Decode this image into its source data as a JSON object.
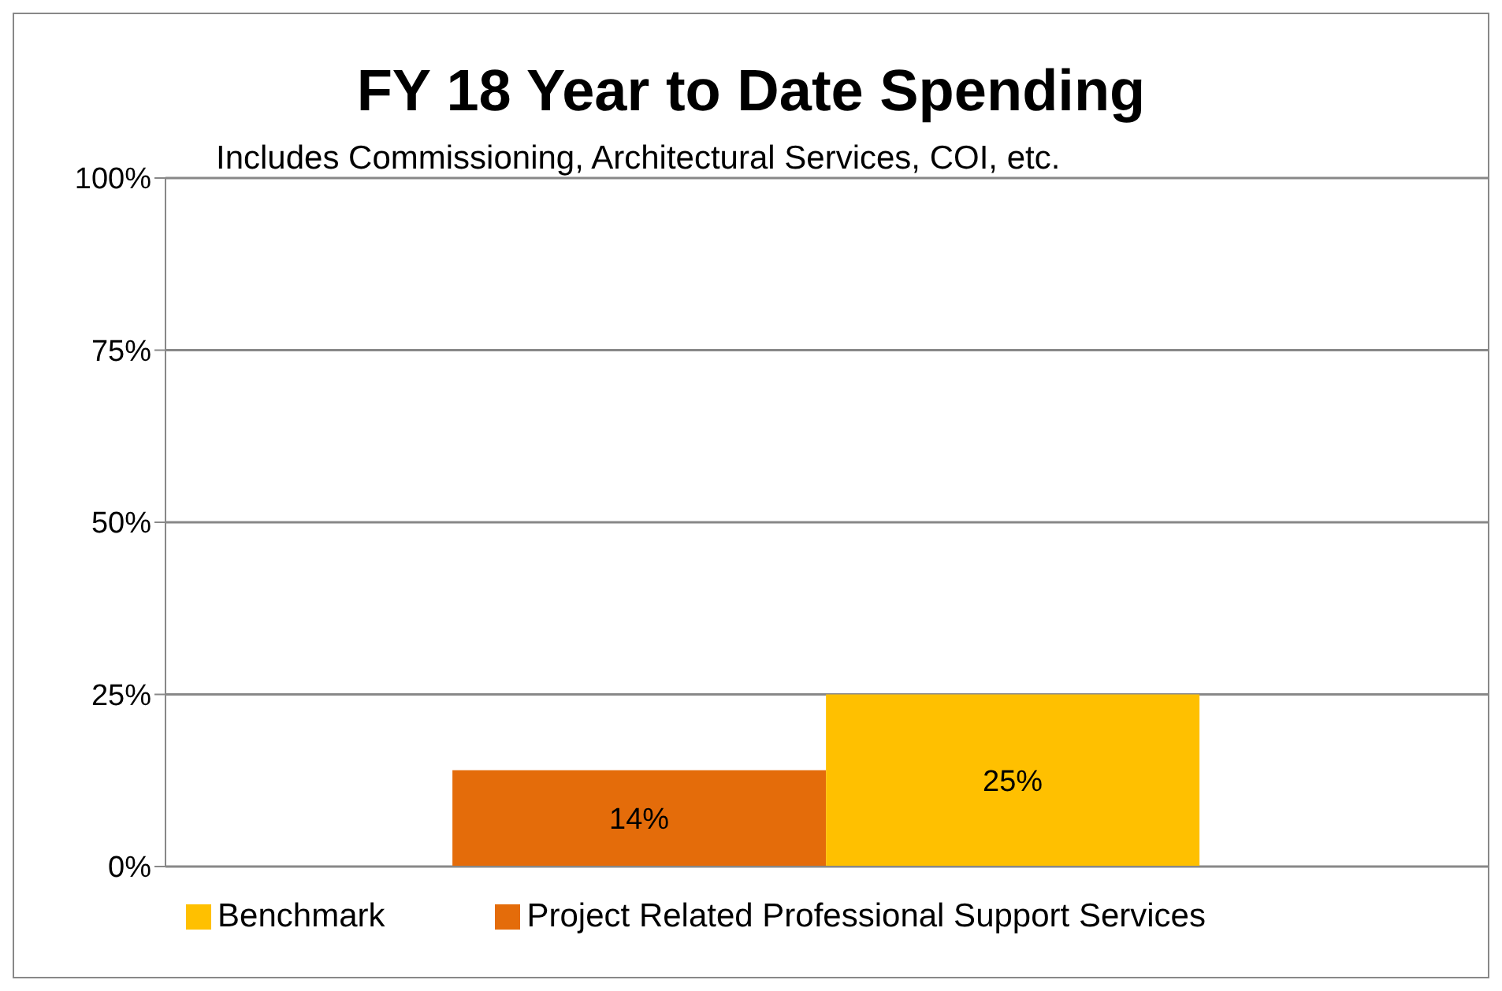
{
  "chart_data": {
    "type": "bar",
    "title": "FY 18 Year to Date Spending",
    "subtitle": "Includes Commissioning, Architectural Services, COI, etc.",
    "categories": [
      null
    ],
    "series": [
      {
        "name": "Project Related Professional Support Services",
        "color": "#e46c0a",
        "values": [
          14
        ],
        "value_labels": [
          "14%"
        ]
      },
      {
        "name": "Benchmark",
        "color": "#ffc000",
        "values": [
          25
        ],
        "value_labels": [
          "25%"
        ]
      }
    ],
    "ylim": [
      0,
      100
    ],
    "yticks": [
      {
        "value": 0,
        "label": "0%"
      },
      {
        "value": 25,
        "label": "25%"
      },
      {
        "value": 50,
        "label": "50%"
      },
      {
        "value": 75,
        "label": "75%"
      },
      {
        "value": 100,
        "label": "100%"
      }
    ],
    "grid": "y",
    "legend": "bottom"
  }
}
